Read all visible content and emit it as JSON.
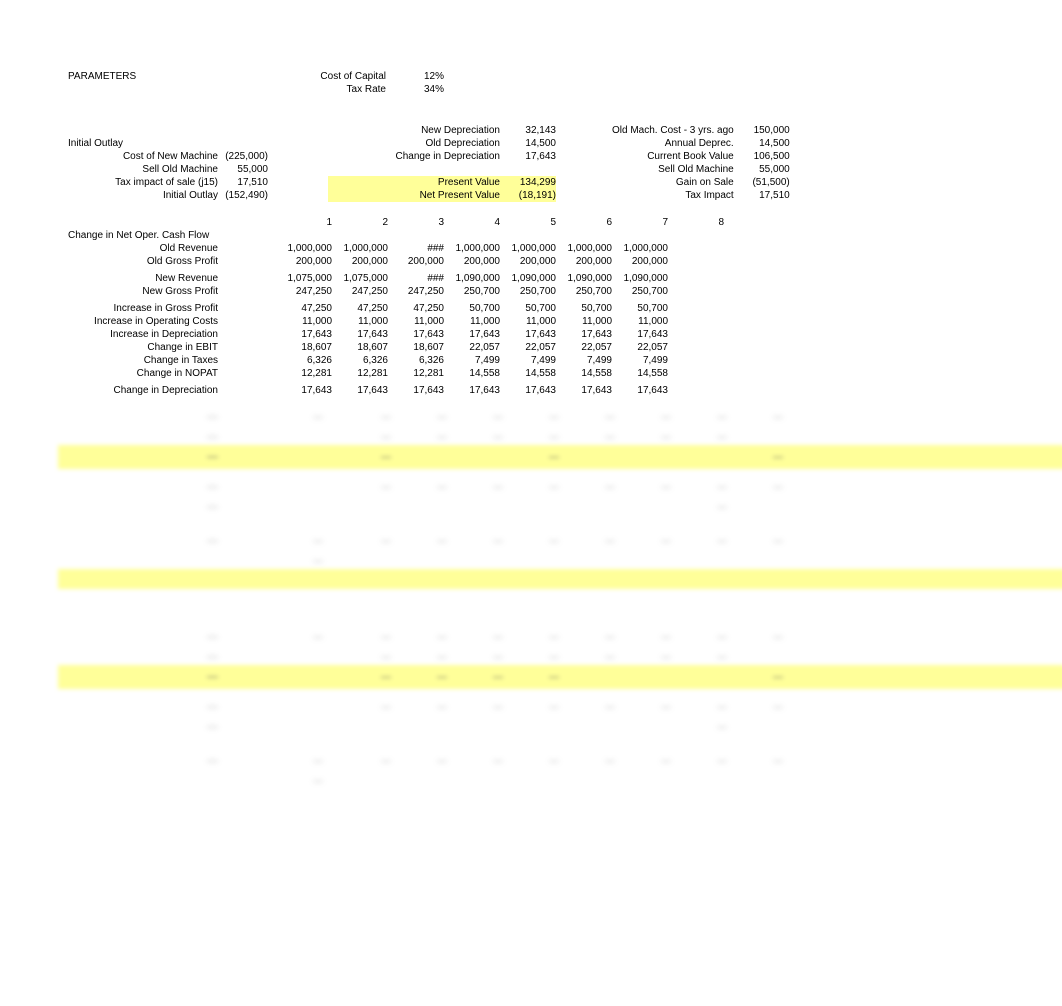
{
  "parameters": {
    "title": "PARAMETERS",
    "cost_of_capital_label": "Cost of Capital",
    "cost_of_capital": "12%",
    "tax_rate_label": "Tax Rate",
    "tax_rate": "34%"
  },
  "depreciation": {
    "new_dep_label": "New Depreciation",
    "new_dep": "32,143",
    "old_dep_label": "Old Depreciation",
    "old_dep": "14,500",
    "change_dep_label": "Change in Depreciation",
    "change_dep": "17,643",
    "pv_label": "Present Value",
    "pv": "134,299",
    "npv_label": "Net Present Value",
    "npv": "(18,191)"
  },
  "outlay": {
    "title": "Initial Outlay",
    "cost_new_label": "Cost of New Machine",
    "cost_new": "(225,000)",
    "sell_old_label": "Sell Old Machine",
    "sell_old": "55,000",
    "tax_impact_label": "Tax impact of sale   (j15)",
    "tax_impact": "17,510",
    "initial_outlay_label": "Initial Outlay",
    "initial_outlay": "(152,490)"
  },
  "old_machine": {
    "cost_label": "Old Mach. Cost - 3 yrs. ago",
    "cost": "150,000",
    "annual_dep_label": "Annual Deprec.",
    "annual_dep": "14,500",
    "book_value_label": "Current Book Value",
    "book_value": "106,500",
    "sell_label": "Sell Old Machine",
    "sell": "55,000",
    "gain_label": "Gain on Sale",
    "gain": "(51,500)",
    "tax_label": "Tax Impact",
    "tax": "17,510"
  },
  "years": [
    "1",
    "2",
    "3",
    "4",
    "5",
    "6",
    "7",
    "8"
  ],
  "table": {
    "section_title": "Change in Net Oper. Cash Flow",
    "rows": [
      {
        "label": "Old   Revenue",
        "v": [
          "1,000,000",
          "1,000,000",
          "###",
          "1,000,000",
          "1,000,000",
          "1,000,000",
          "1,000,000",
          ""
        ]
      },
      {
        "label": "Old Gross Profit",
        "v": [
          "200,000",
          "200,000",
          "200,000",
          "200,000",
          "200,000",
          "200,000",
          "200,000",
          ""
        ]
      },
      {
        "label": "",
        "v": [
          "",
          "",
          "",
          "",
          "",
          "",
          "",
          ""
        ]
      },
      {
        "label": "New Revenue",
        "v": [
          "1,075,000",
          "1,075,000",
          "###",
          "1,090,000",
          "1,090,000",
          "1,090,000",
          "1,090,000",
          ""
        ]
      },
      {
        "label": "New Gross Profit",
        "v": [
          "247,250",
          "247,250",
          "247,250",
          "250,700",
          "250,700",
          "250,700",
          "250,700",
          ""
        ]
      },
      {
        "label": "",
        "v": [
          "",
          "",
          "",
          "",
          "",
          "",
          "",
          ""
        ]
      },
      {
        "label": "Increase in Gross Profit",
        "v": [
          "47,250",
          "47,250",
          "47,250",
          "50,700",
          "50,700",
          "50,700",
          "50,700",
          ""
        ]
      },
      {
        "label": "Increase in Operating Costs",
        "v": [
          "11,000",
          "11,000",
          "11,000",
          "11,000",
          "11,000",
          "11,000",
          "11,000",
          ""
        ]
      },
      {
        "label": "Increase in Depreciation",
        "v": [
          "17,643",
          "17,643",
          "17,643",
          "17,643",
          "17,643",
          "17,643",
          "17,643",
          ""
        ]
      },
      {
        "label": "Change in EBIT",
        "v": [
          "18,607",
          "18,607",
          "18,607",
          "22,057",
          "22,057",
          "22,057",
          "22,057",
          ""
        ]
      },
      {
        "label": "Change in Taxes",
        "v": [
          "6,326",
          "6,326",
          "6,326",
          "7,499",
          "7,499",
          "7,499",
          "7,499",
          ""
        ]
      },
      {
        "label": "Change in NOPAT",
        "v": [
          "12,281",
          "12,281",
          "12,281",
          "14,558",
          "14,558",
          "14,558",
          "14,558",
          ""
        ]
      },
      {
        "label": "",
        "v": [
          "",
          "",
          "",
          "",
          "",
          "",
          "",
          ""
        ]
      },
      {
        "label": "Change in Depreciation",
        "v": [
          "17,643",
          "17,643",
          "17,643",
          "17,643",
          "17,643",
          "17,643",
          "17,643",
          ""
        ]
      }
    ]
  },
  "colwidths": {
    "label_w": 150,
    "outlay_w": 50,
    "spacer1": 60,
    "year_w": 56
  },
  "colors": {
    "highlight": "#ffff99",
    "text": "#000000",
    "bg": "#ffffff"
  }
}
